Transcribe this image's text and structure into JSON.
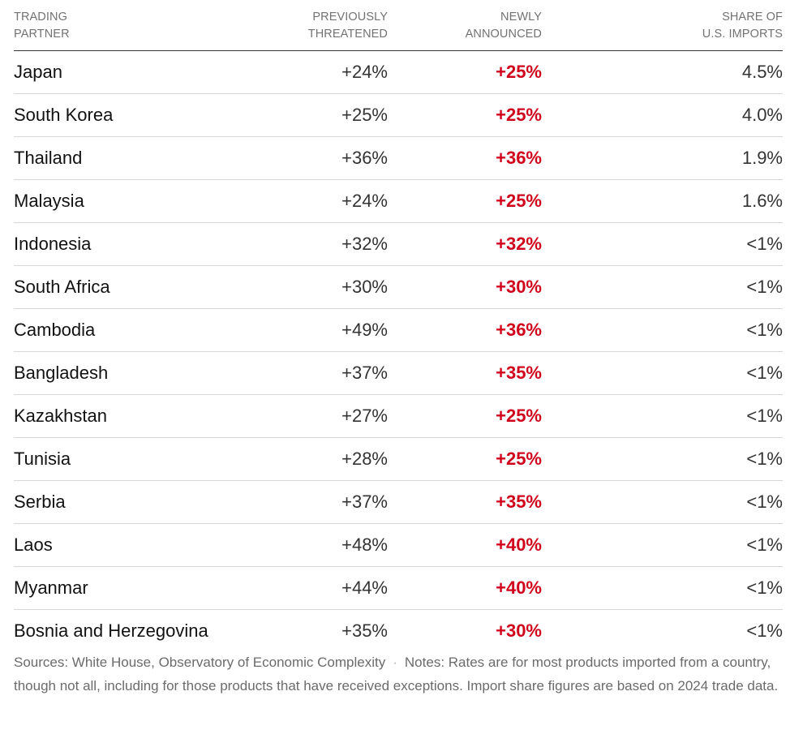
{
  "chart_data": {
    "type": "table",
    "columns": [
      {
        "label_line1": "TRADING",
        "label_line2": "PARTNER"
      },
      {
        "label_line1": "PREVIOUSLY",
        "label_line2": "THREATENED"
      },
      {
        "label_line1": "NEWLY",
        "label_line2": "ANNOUNCED"
      },
      {
        "label_line1": "SHARE OF",
        "label_line2": "U.S. IMPORTS"
      }
    ],
    "rows": [
      {
        "partner": "Japan",
        "previously": "+24%",
        "newly": "+25%",
        "share": "4.5%"
      },
      {
        "partner": "South Korea",
        "previously": "+25%",
        "newly": "+25%",
        "share": "4.0%"
      },
      {
        "partner": "Thailand",
        "previously": "+36%",
        "newly": "+36%",
        "share": "1.9%"
      },
      {
        "partner": "Malaysia",
        "previously": "+24%",
        "newly": "+25%",
        "share": "1.6%"
      },
      {
        "partner": "Indonesia",
        "previously": "+32%",
        "newly": "+32%",
        "share": "<1%"
      },
      {
        "partner": "South Africa",
        "previously": "+30%",
        "newly": "+30%",
        "share": "<1%"
      },
      {
        "partner": "Cambodia",
        "previously": "+49%",
        "newly": "+36%",
        "share": "<1%"
      },
      {
        "partner": "Bangladesh",
        "previously": "+37%",
        "newly": "+35%",
        "share": "<1%"
      },
      {
        "partner": "Kazakhstan",
        "previously": "+27%",
        "newly": "+25%",
        "share": "<1%"
      },
      {
        "partner": "Tunisia",
        "previously": "+28%",
        "newly": "+25%",
        "share": "<1%"
      },
      {
        "partner": "Serbia",
        "previously": "+37%",
        "newly": "+35%",
        "share": "<1%"
      },
      {
        "partner": "Laos",
        "previously": "+48%",
        "newly": "+40%",
        "share": "<1%"
      },
      {
        "partner": "Myanmar",
        "previously": "+44%",
        "newly": "+40%",
        "share": "<1%"
      },
      {
        "partner": "Bosnia and Herzegovina",
        "previously": "+35%",
        "newly": "+30%",
        "share": "<1%"
      }
    ],
    "accent_color": "#d0021b"
  },
  "footer": {
    "sources": "Sources: White House, Observatory of Economic Complexity",
    "separator": "·",
    "notes": "Notes: Rates are for most products imported from a country, though not all, including for those products that have received exceptions. Import share figures are based on 2024 trade data."
  }
}
